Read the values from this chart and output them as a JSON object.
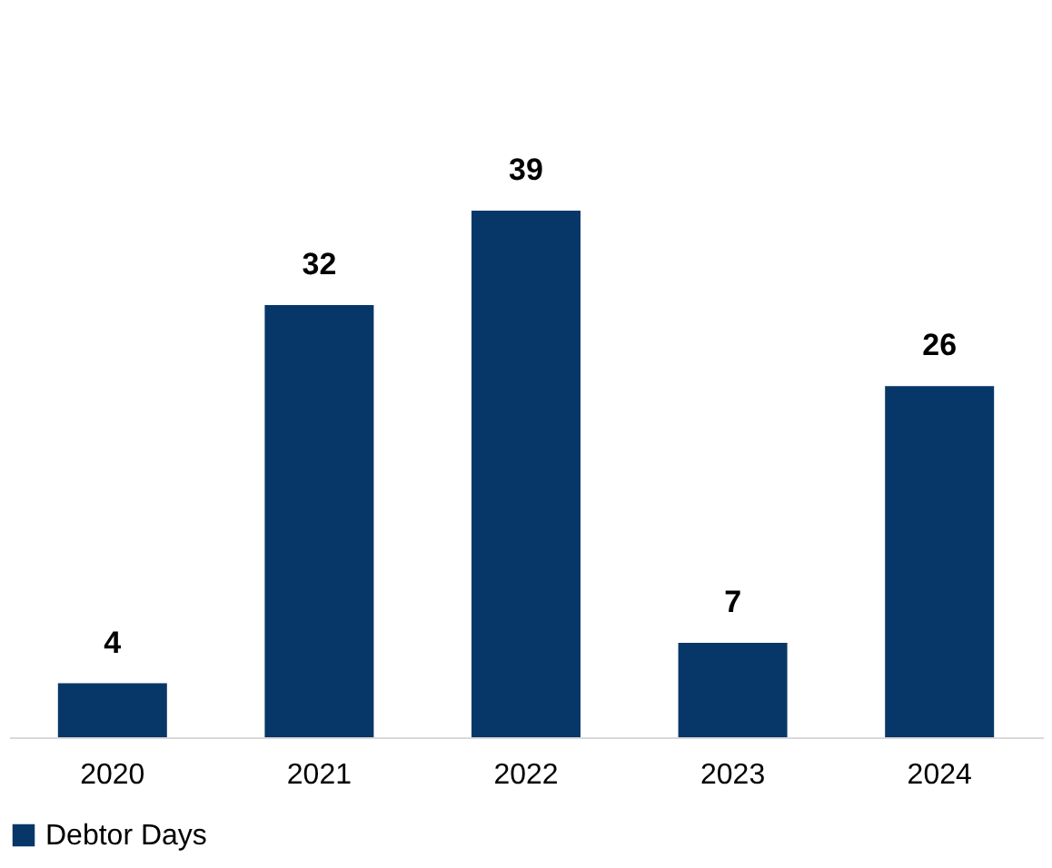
{
  "chart_data": {
    "type": "bar",
    "categories": [
      "2020",
      "2021",
      "2022",
      "2023",
      "2024"
    ],
    "series": [
      {
        "name": "Debtor Days",
        "color": "#063768",
        "values": [
          4,
          32,
          39,
          7,
          26
        ]
      }
    ],
    "data_labels": true,
    "legend": "bottom",
    "grid": false
  }
}
